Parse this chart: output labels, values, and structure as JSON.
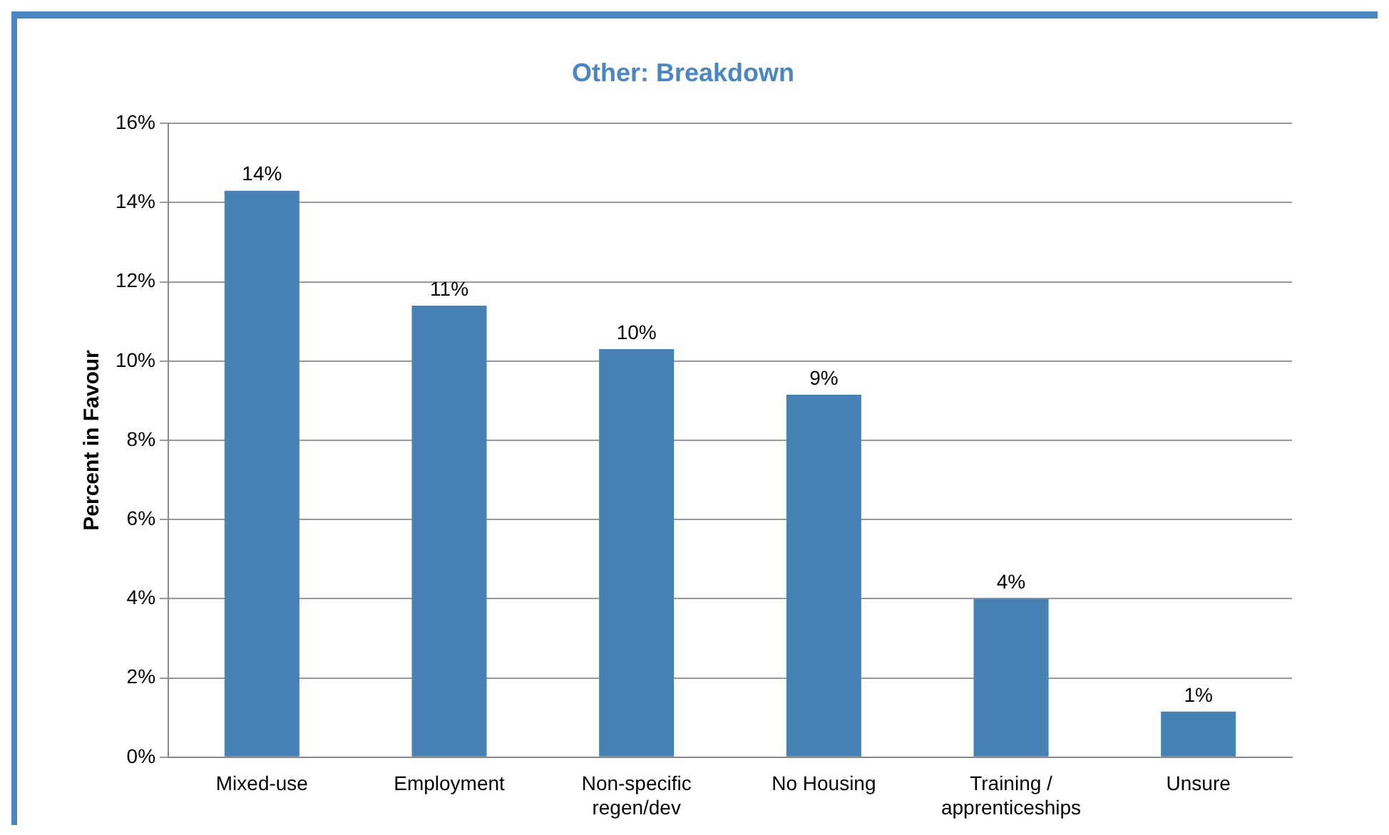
{
  "chart_data": {
    "type": "bar",
    "title": "Other: Breakdown",
    "ylabel": "Percent in Favour",
    "categories": [
      "Mixed-use",
      "Employment",
      "Non-specific regen/dev",
      "No Housing",
      "Training / apprenticeships",
      "Unsure"
    ],
    "values": [
      14.3,
      11.4,
      10.3,
      9.15,
      4.0,
      1.15
    ],
    "value_labels": [
      "14%",
      "11%",
      "10%",
      "9%",
      "4%",
      "1%"
    ],
    "color": "#4682b4",
    "ylim": [
      0,
      16
    ],
    "yticks": [
      {
        "value": 0,
        "label": "0%"
      },
      {
        "value": 2,
        "label": "2%"
      },
      {
        "value": 4,
        "label": "4%"
      },
      {
        "value": 6,
        "label": "6%"
      },
      {
        "value": 8,
        "label": "8%"
      },
      {
        "value": 10,
        "label": "10%"
      },
      {
        "value": 12,
        "label": "12%"
      },
      {
        "value": 14,
        "label": "14%"
      },
      {
        "value": 16,
        "label": "16%"
      }
    ],
    "grid": "y",
    "legend": false
  }
}
